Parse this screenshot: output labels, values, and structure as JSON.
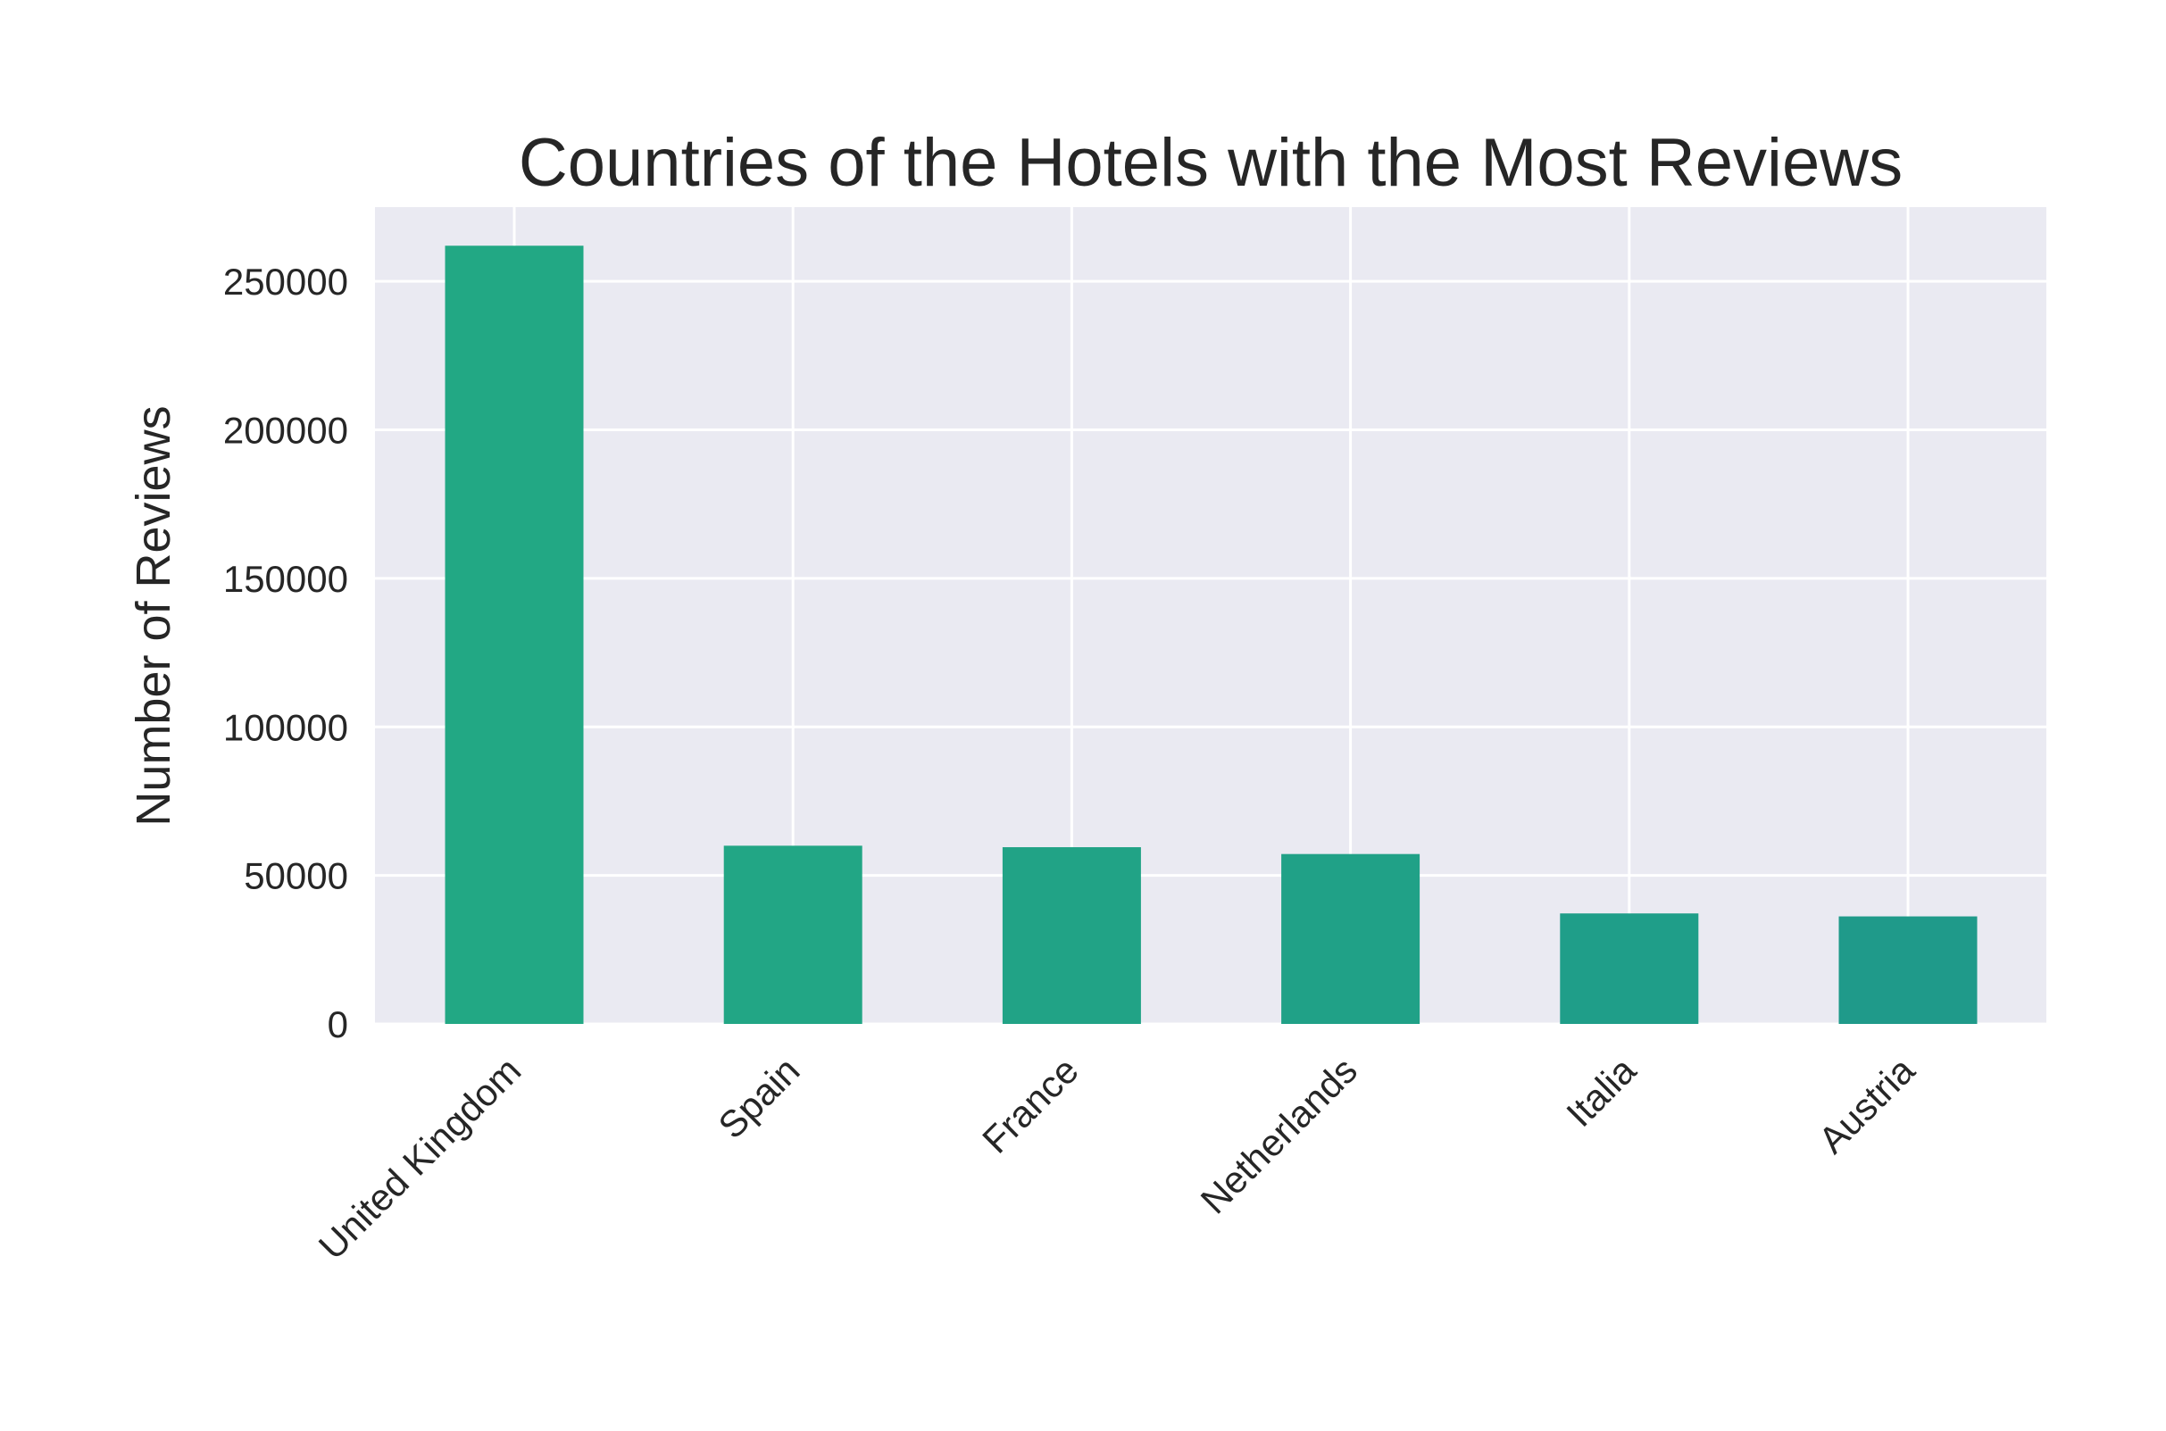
{
  "chart_data": {
    "type": "bar",
    "title": "Countries of the Hotels with the Most Reviews",
    "xlabel": "",
    "ylabel": "Number of Reviews",
    "categories": [
      "United Kingdom",
      "Spain",
      "France",
      "Netherlands",
      "Italia",
      "Austria"
    ],
    "values": [
      262000,
      60000,
      59500,
      57200,
      37200,
      36200
    ],
    "ylim": [
      0,
      275000
    ],
    "yticks": [
      "0",
      "50000",
      "100000",
      "150000",
      "200000",
      "250000"
    ],
    "ytick_values": [
      0,
      50000,
      100000,
      150000,
      200000,
      250000
    ],
    "grid": true,
    "legend": "none",
    "colors": {
      "background": "#eaeaf2",
      "grid": "#ffffff",
      "bars": [
        "#22a884",
        "#22a685",
        "#21a386",
        "#20a187",
        "#1f9e89",
        "#1f9a8a"
      ]
    }
  }
}
